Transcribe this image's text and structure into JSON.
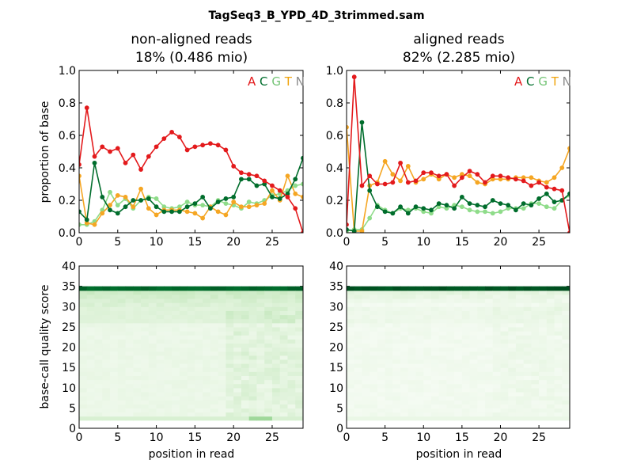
{
  "figure": {
    "title": "TagSeq3_B_YPD_4D_3trimmed.sam"
  },
  "panels": {
    "left_title_line1": "non-aligned reads",
    "left_title_line2": "18% (0.486 mio)",
    "right_title_line1": "aligned reads",
    "right_title_line2": "82% (2.285 mio)",
    "ylabel_top": "proportion of base",
    "ylabel_bottom": "base-call quality score",
    "xlabel": "position in read"
  },
  "legend": {
    "letters": [
      {
        "text": "A",
        "color": "#e31a1c"
      },
      {
        "text": "C",
        "color": "#006d2c"
      },
      {
        "text": "G",
        "color": "#74c476"
      },
      {
        "text": "T",
        "color": "#f0a30a"
      },
      {
        "text": "N",
        "color": "#8c8c8c"
      }
    ]
  },
  "colors": {
    "A": "#e31a1c",
    "C": "#006d2c",
    "G": "#8fdc8a",
    "T": "#f5a623",
    "N": "#9a9a9a"
  },
  "chart_data": [
    {
      "type": "line",
      "panel": "non-aligned base composition",
      "xlabel": "",
      "ylabel": "proportion of base",
      "xlim": [
        0,
        29
      ],
      "ylim": [
        0,
        1.0
      ],
      "xticks": [
        "0",
        "5",
        "10",
        "15",
        "20",
        "25"
      ],
      "yticks": [
        "0.0",
        "0.2",
        "0.4",
        "0.6",
        "0.8",
        "1.0"
      ],
      "x": [
        0,
        1,
        2,
        3,
        4,
        5,
        6,
        7,
        8,
        9,
        10,
        11,
        12,
        13,
        14,
        15,
        16,
        17,
        18,
        19,
        20,
        21,
        22,
        23,
        24,
        25,
        26,
        27,
        28,
        29
      ],
      "series": [
        {
          "name": "A",
          "values": [
            0.42,
            0.77,
            0.47,
            0.53,
            0.5,
            0.52,
            0.43,
            0.48,
            0.39,
            0.47,
            0.53,
            0.58,
            0.62,
            0.59,
            0.51,
            0.53,
            0.54,
            0.55,
            0.54,
            0.51,
            0.41,
            0.37,
            0.36,
            0.35,
            0.32,
            0.29,
            0.26,
            0.22,
            0.15,
            0.0
          ]
        },
        {
          "name": "C",
          "values": [
            0.13,
            0.08,
            0.43,
            0.22,
            0.14,
            0.12,
            0.16,
            0.2,
            0.2,
            0.21,
            0.16,
            0.13,
            0.13,
            0.13,
            0.16,
            0.18,
            0.22,
            0.15,
            0.19,
            0.21,
            0.22,
            0.33,
            0.33,
            0.29,
            0.3,
            0.22,
            0.21,
            0.24,
            0.33,
            0.46
          ]
        },
        {
          "name": "G",
          "values": [
            0.05,
            0.05,
            0.07,
            0.14,
            0.25,
            0.17,
            0.21,
            0.15,
            0.2,
            0.22,
            0.21,
            0.16,
            0.15,
            0.16,
            0.19,
            0.17,
            0.17,
            0.16,
            0.2,
            0.18,
            0.17,
            0.15,
            0.19,
            0.18,
            0.2,
            0.23,
            0.24,
            0.26,
            0.29,
            0.3
          ]
        },
        {
          "name": "T",
          "values": [
            0.35,
            0.06,
            0.05,
            0.12,
            0.17,
            0.23,
            0.22,
            0.16,
            0.27,
            0.15,
            0.11,
            0.14,
            0.14,
            0.14,
            0.13,
            0.12,
            0.09,
            0.16,
            0.13,
            0.11,
            0.19,
            0.16,
            0.16,
            0.17,
            0.18,
            0.26,
            0.2,
            0.35,
            0.24,
            0.22
          ]
        },
        {
          "name": "N",
          "values": [
            0,
            0,
            0,
            0,
            0,
            0,
            0,
            0,
            0,
            0,
            0,
            0,
            0,
            0,
            0,
            0,
            0,
            0,
            0,
            0,
            0,
            0,
            0,
            0,
            0,
            0,
            0,
            0,
            0,
            0
          ]
        }
      ]
    },
    {
      "type": "line",
      "panel": "aligned base composition",
      "xlabel": "",
      "ylabel": "",
      "xlim": [
        0,
        29
      ],
      "ylim": [
        0,
        1.0
      ],
      "xticks": [
        "0",
        "5",
        "10",
        "15",
        "20",
        "25"
      ],
      "yticks": [
        "0.0",
        "0.2",
        "0.4",
        "0.6",
        "0.8",
        "1.0"
      ],
      "x": [
        0,
        1,
        2,
        3,
        4,
        5,
        6,
        7,
        8,
        9,
        10,
        11,
        12,
        13,
        14,
        15,
        16,
        17,
        18,
        19,
        20,
        21,
        22,
        23,
        24,
        25,
        26,
        27,
        28,
        29
      ],
      "series": [
        {
          "name": "A",
          "values": [
            0.05,
            0.96,
            0.29,
            0.35,
            0.3,
            0.3,
            0.31,
            0.43,
            0.31,
            0.32,
            0.37,
            0.37,
            0.35,
            0.36,
            0.29,
            0.34,
            0.38,
            0.36,
            0.31,
            0.35,
            0.35,
            0.34,
            0.33,
            0.32,
            0.29,
            0.31,
            0.28,
            0.27,
            0.26,
            0.0
          ]
        },
        {
          "name": "C",
          "values": [
            0.02,
            0.01,
            0.68,
            0.26,
            0.16,
            0.13,
            0.12,
            0.16,
            0.12,
            0.16,
            0.15,
            0.14,
            0.18,
            0.17,
            0.15,
            0.22,
            0.18,
            0.17,
            0.16,
            0.2,
            0.18,
            0.17,
            0.14,
            0.18,
            0.17,
            0.21,
            0.24,
            0.19,
            0.2,
            0.24
          ]
        },
        {
          "name": "G",
          "values": [
            0.01,
            0.02,
            0.02,
            0.09,
            0.17,
            0.14,
            0.12,
            0.15,
            0.14,
            0.15,
            0.13,
            0.12,
            0.16,
            0.15,
            0.17,
            0.16,
            0.14,
            0.13,
            0.13,
            0.12,
            0.13,
            0.15,
            0.15,
            0.15,
            0.18,
            0.18,
            0.16,
            0.15,
            0.2,
            0.23
          ]
        },
        {
          "name": "T",
          "values": [
            0.65,
            0.01,
            0.01,
            0.29,
            0.31,
            0.44,
            0.36,
            0.32,
            0.41,
            0.31,
            0.33,
            0.36,
            0.33,
            0.36,
            0.34,
            0.36,
            0.35,
            0.31,
            0.3,
            0.33,
            0.33,
            0.33,
            0.34,
            0.34,
            0.34,
            0.32,
            0.31,
            0.34,
            0.4,
            0.52
          ]
        },
        {
          "name": "N",
          "values": [
            0,
            0,
            0,
            0,
            0,
            0,
            0,
            0,
            0,
            0,
            0,
            0,
            0,
            0,
            0,
            0,
            0,
            0,
            0,
            0,
            0,
            0,
            0,
            0,
            0,
            0,
            0,
            0,
            0,
            0
          ]
        }
      ]
    },
    {
      "type": "heatmap",
      "panel": "non-aligned quality",
      "xlabel": "position in read",
      "ylabel": "base-call quality score",
      "xlim": [
        0,
        29
      ],
      "ylim": [
        0,
        40
      ],
      "xticks": [
        "0",
        "5",
        "10",
        "15",
        "20",
        "25"
      ],
      "yticks": [
        "0",
        "5",
        "10",
        "15",
        "20",
        "25",
        "30",
        "35",
        "40"
      ],
      "positions": 29,
      "qualities": 40,
      "description_values": {
        "peak_row": 34,
        "peak_intensity": 0.92,
        "secondary_rows": [
          33,
          32,
          31,
          30
        ],
        "low_quality_row": 2,
        "late_position_noise_start": 19
      }
    },
    {
      "type": "heatmap",
      "panel": "aligned quality",
      "xlabel": "position in read",
      "ylabel": "",
      "xlim": [
        0,
        29
      ],
      "ylim": [
        0,
        40
      ],
      "xticks": [
        "0",
        "5",
        "10",
        "15",
        "20",
        "25"
      ],
      "yticks": [
        "0",
        "5",
        "10",
        "15",
        "20",
        "25",
        "30",
        "35",
        "40"
      ],
      "positions": 29,
      "qualities": 40,
      "description_values": {
        "peak_row": 34,
        "peak_intensity": 0.97,
        "secondary_rows": [
          33,
          32,
          31
        ],
        "low_quality_row": 2,
        "late_position_noise_start": 19
      }
    }
  ]
}
